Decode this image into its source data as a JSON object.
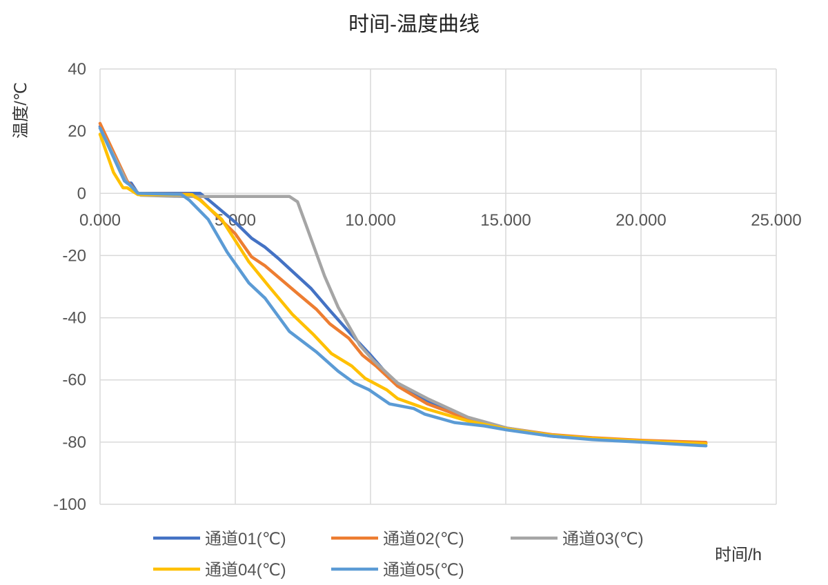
{
  "chart_data": {
    "type": "line",
    "title": "时间-温度曲线",
    "xlabel": "时间/h",
    "ylabel": "温度/℃",
    "xlim": [
      0,
      25
    ],
    "ylim": [
      -100,
      40
    ],
    "grid": true,
    "legend_position": "bottom",
    "x_ticks": [
      "0.000",
      "5.000",
      "10.000",
      "15.000",
      "20.000",
      "25.000"
    ],
    "x_tick_values": [
      0,
      5,
      10,
      15,
      20,
      25
    ],
    "y_ticks": [
      "40",
      "20",
      "0",
      "-20",
      "-40",
      "-60",
      "-80",
      "-100"
    ],
    "y_tick_values": [
      40,
      20,
      0,
      -20,
      -40,
      -60,
      -80,
      -100
    ],
    "series": [
      {
        "name": "通道01(℃)",
        "color": "#4472C4",
        "points": [
          [
            0,
            21.5
          ],
          [
            1.0,
            3.3
          ],
          [
            1.15,
            3.3
          ],
          [
            1.4,
            0
          ],
          [
            3.7,
            0
          ],
          [
            4.0,
            -2
          ],
          [
            5.0,
            -9.3
          ],
          [
            5.6,
            -14.4
          ],
          [
            6.1,
            -17.3
          ],
          [
            6.6,
            -21
          ],
          [
            7.3,
            -26.6
          ],
          [
            7.8,
            -30.6
          ],
          [
            8.5,
            -37.7
          ],
          [
            9.3,
            -45.5
          ],
          [
            10.0,
            -52
          ],
          [
            10.8,
            -60
          ],
          [
            12.1,
            -66.6
          ],
          [
            13.6,
            -72.6
          ],
          [
            15.05,
            -75.9
          ],
          [
            16.7,
            -78.1
          ],
          [
            18.2,
            -79
          ],
          [
            20,
            -79.9
          ],
          [
            22.4,
            -80.5
          ]
        ]
      },
      {
        "name": "通道02(℃)",
        "color": "#ED7D31",
        "points": [
          [
            0,
            22.5
          ],
          [
            1.0,
            4
          ],
          [
            1.4,
            0
          ],
          [
            3.3,
            -0.3
          ],
          [
            3.7,
            -2
          ],
          [
            5.0,
            -13
          ],
          [
            5.6,
            -20.4
          ],
          [
            6.1,
            -23.3
          ],
          [
            7.3,
            -32.2
          ],
          [
            8.0,
            -37.3
          ],
          [
            8.5,
            -42
          ],
          [
            9.2,
            -46.6
          ],
          [
            9.7,
            -52
          ],
          [
            10.2,
            -55.5
          ],
          [
            11.0,
            -62
          ],
          [
            12.1,
            -67.7
          ],
          [
            13.6,
            -72.5
          ],
          [
            15.05,
            -75.5
          ],
          [
            16.7,
            -77.6
          ],
          [
            18.2,
            -78.6
          ],
          [
            20,
            -79.4
          ],
          [
            22.4,
            -80.1
          ]
        ]
      },
      {
        "name": "通道03(℃)",
        "color": "#A5A5A5",
        "points": [
          [
            0,
            21
          ],
          [
            1.0,
            3.5
          ],
          [
            1.5,
            -0.6
          ],
          [
            3.0,
            -1
          ],
          [
            7.0,
            -1
          ],
          [
            7.3,
            -2.7
          ],
          [
            7.65,
            -11
          ],
          [
            8.3,
            -26.6
          ],
          [
            8.8,
            -36.6
          ],
          [
            9.6,
            -48.8
          ],
          [
            10.1,
            -53.7
          ],
          [
            11.0,
            -61
          ],
          [
            12.1,
            -66
          ],
          [
            13.6,
            -72
          ],
          [
            15.05,
            -75.5
          ],
          [
            16.7,
            -77.8
          ],
          [
            18.2,
            -78.9
          ],
          [
            20,
            -79.7
          ],
          [
            22.4,
            -80.5
          ]
        ]
      },
      {
        "name": "通道04(℃)",
        "color": "#FFC000",
        "points": [
          [
            0,
            19
          ],
          [
            0.5,
            6.7
          ],
          [
            0.85,
            1.8
          ],
          [
            1.0,
            1.8
          ],
          [
            1.4,
            -0.4
          ],
          [
            3.4,
            -0.4
          ],
          [
            3.7,
            -2.2
          ],
          [
            4.5,
            -8.4
          ],
          [
            5.5,
            -22
          ],
          [
            6.25,
            -30
          ],
          [
            7.1,
            -38.8
          ],
          [
            7.9,
            -45.5
          ],
          [
            8.55,
            -51.5
          ],
          [
            9.3,
            -55.5
          ],
          [
            9.8,
            -59.5
          ],
          [
            10.6,
            -63.2
          ],
          [
            11.0,
            -66
          ],
          [
            12.1,
            -69.4
          ],
          [
            13.6,
            -73.2
          ],
          [
            15.05,
            -75.8
          ],
          [
            16.7,
            -77.8
          ],
          [
            18.2,
            -78.8
          ],
          [
            20,
            -79.6
          ],
          [
            22.4,
            -80.5
          ]
        ]
      },
      {
        "name": "通道05(℃)",
        "color": "#5B9BD5",
        "points": [
          [
            0,
            21
          ],
          [
            0.9,
            4
          ],
          [
            1.1,
            2.7
          ],
          [
            1.4,
            0
          ],
          [
            3.0,
            -0.3
          ],
          [
            3.3,
            -2.2
          ],
          [
            4.0,
            -8.4
          ],
          [
            4.7,
            -18.9
          ],
          [
            5.5,
            -28.8
          ],
          [
            6.1,
            -33.7
          ],
          [
            7.0,
            -44.4
          ],
          [
            8.0,
            -51
          ],
          [
            8.8,
            -57.2
          ],
          [
            9.4,
            -61
          ],
          [
            9.95,
            -63.2
          ],
          [
            10.7,
            -67.7
          ],
          [
            11.6,
            -69.2
          ],
          [
            12.0,
            -71
          ],
          [
            13.1,
            -73.7
          ],
          [
            14.2,
            -74.8
          ],
          [
            15.05,
            -76.1
          ],
          [
            16.7,
            -78.1
          ],
          [
            18.2,
            -79.2
          ],
          [
            20,
            -80
          ],
          [
            22.4,
            -81.2
          ]
        ]
      }
    ]
  }
}
